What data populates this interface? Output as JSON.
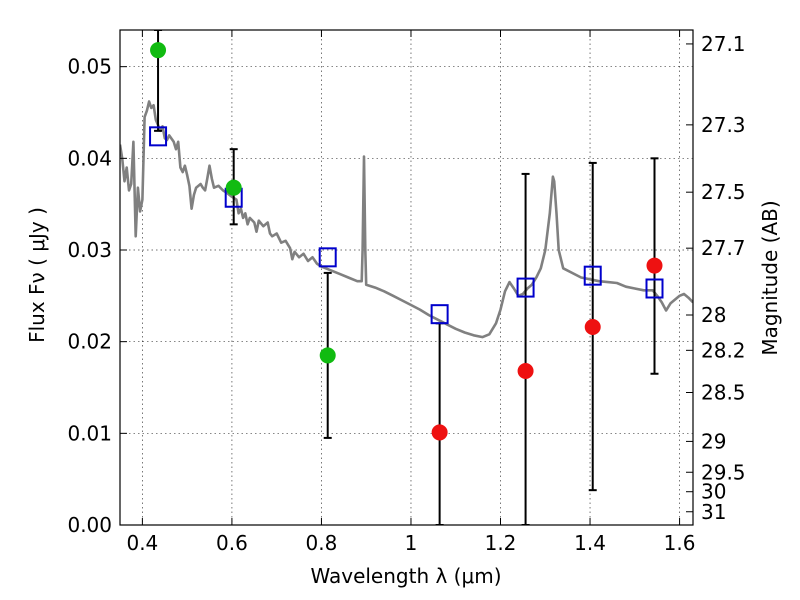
{
  "chart_data": {
    "type": "scatter",
    "xlabel": "Wavelength  λ (μm)",
    "ylabel": "Flux  Fν  ( μJy )",
    "ylabel_right": "Magnitude (AB)",
    "xlim": [
      0.35,
      1.63
    ],
    "ylim": [
      0.0,
      0.054
    ],
    "grid": true,
    "x_ticks": [
      0.4,
      0.6,
      0.8,
      1.0,
      1.2,
      1.4,
      1.6
    ],
    "x_tick_labels": [
      "0.4",
      "0.6",
      "0.8",
      "1",
      "1.2",
      "1.4",
      "1.6"
    ],
    "y_ticks": [
      0.0,
      0.01,
      0.02,
      0.03,
      0.04,
      0.05
    ],
    "y_tick_labels": [
      "0.00",
      "0.01",
      "0.02",
      "0.03",
      "0.04",
      "0.05"
    ],
    "right_ticks": [
      {
        "mag": 27.1,
        "label": "27.1"
      },
      {
        "mag": 27.3,
        "label": "27.3"
      },
      {
        "mag": 27.5,
        "label": "27.5"
      },
      {
        "mag": 27.7,
        "label": "27.7"
      },
      {
        "mag": 28.0,
        "label": "28"
      },
      {
        "mag": 28.2,
        "label": "28.2"
      },
      {
        "mag": 28.5,
        "label": "28.5"
      },
      {
        "mag": 29.0,
        "label": "29"
      },
      {
        "mag": 29.5,
        "label": "29.5"
      },
      {
        "mag": 30.0,
        "label": "30"
      },
      {
        "mag": 31.0,
        "label": "31"
      }
    ],
    "series": [
      {
        "kind": "model-spectrum",
        "color": "#808080",
        "points": [
          [
            0.35,
            0.0415
          ],
          [
            0.355,
            0.04
          ],
          [
            0.36,
            0.0375
          ],
          [
            0.365,
            0.039
          ],
          [
            0.37,
            0.0365
          ],
          [
            0.375,
            0.0372
          ],
          [
            0.38,
            0.0418
          ],
          [
            0.385,
            0.0315
          ],
          [
            0.39,
            0.0368
          ],
          [
            0.395,
            0.0342
          ],
          [
            0.4,
            0.0355
          ],
          [
            0.405,
            0.0445
          ],
          [
            0.41,
            0.0452
          ],
          [
            0.415,
            0.0462
          ],
          [
            0.42,
            0.0455
          ],
          [
            0.425,
            0.0458
          ],
          [
            0.43,
            0.0442
          ],
          [
            0.435,
            0.0436
          ],
          [
            0.44,
            0.043
          ],
          [
            0.445,
            0.0435
          ],
          [
            0.45,
            0.0422
          ],
          [
            0.455,
            0.042
          ],
          [
            0.46,
            0.0425
          ],
          [
            0.47,
            0.0418
          ],
          [
            0.475,
            0.041
          ],
          [
            0.48,
            0.0418
          ],
          [
            0.485,
            0.039
          ],
          [
            0.49,
            0.0385
          ],
          [
            0.495,
            0.0392
          ],
          [
            0.5,
            0.0382
          ],
          [
            0.505,
            0.037
          ],
          [
            0.51,
            0.0345
          ],
          [
            0.515,
            0.036
          ],
          [
            0.52,
            0.0368
          ],
          [
            0.53,
            0.0372
          ],
          [
            0.535,
            0.0368
          ],
          [
            0.54,
            0.0365
          ],
          [
            0.545,
            0.0378
          ],
          [
            0.55,
            0.0392
          ],
          [
            0.555,
            0.0378
          ],
          [
            0.56,
            0.0368
          ],
          [
            0.57,
            0.037
          ],
          [
            0.58,
            0.0365
          ],
          [
            0.59,
            0.0362
          ],
          [
            0.6,
            0.0358
          ],
          [
            0.61,
            0.0355
          ],
          [
            0.615,
            0.034
          ],
          [
            0.62,
            0.0345
          ],
          [
            0.625,
            0.0335
          ],
          [
            0.63,
            0.034
          ],
          [
            0.635,
            0.0328
          ],
          [
            0.64,
            0.0335
          ],
          [
            0.65,
            0.033
          ],
          [
            0.655,
            0.032
          ],
          [
            0.66,
            0.0332
          ],
          [
            0.67,
            0.0326
          ],
          [
            0.68,
            0.033
          ],
          [
            0.685,
            0.0318
          ],
          [
            0.69,
            0.0315
          ],
          [
            0.7,
            0.0318
          ],
          [
            0.71,
            0.0308
          ],
          [
            0.72,
            0.031
          ],
          [
            0.73,
            0.0302
          ],
          [
            0.735,
            0.029
          ],
          [
            0.74,
            0.0298
          ],
          [
            0.75,
            0.0292
          ],
          [
            0.76,
            0.0296
          ],
          [
            0.77,
            0.0288
          ],
          [
            0.78,
            0.0292
          ],
          [
            0.79,
            0.0285
          ],
          [
            0.8,
            0.0282
          ],
          [
            0.82,
            0.0278
          ],
          [
            0.84,
            0.0274
          ],
          [
            0.86,
            0.027
          ],
          [
            0.88,
            0.0266
          ],
          [
            0.89,
            0.0266
          ],
          [
            0.892,
            0.03
          ],
          [
            0.895,
            0.0402
          ],
          [
            0.898,
            0.03
          ],
          [
            0.9,
            0.0262
          ],
          [
            0.92,
            0.0259
          ],
          [
            0.94,
            0.0255
          ],
          [
            0.96,
            0.025
          ],
          [
            0.98,
            0.0245
          ],
          [
            1.0,
            0.024
          ],
          [
            1.02,
            0.0235
          ],
          [
            1.04,
            0.0229
          ],
          [
            1.06,
            0.0224
          ],
          [
            1.08,
            0.0219
          ],
          [
            1.1,
            0.0214
          ],
          [
            1.12,
            0.021
          ],
          [
            1.14,
            0.0207
          ],
          [
            1.16,
            0.0205
          ],
          [
            1.175,
            0.0208
          ],
          [
            1.19,
            0.022
          ],
          [
            1.2,
            0.0235
          ],
          [
            1.21,
            0.0255
          ],
          [
            1.22,
            0.0265
          ],
          [
            1.23,
            0.0258
          ],
          [
            1.24,
            0.025
          ],
          [
            1.25,
            0.0252
          ],
          [
            1.26,
            0.0258
          ],
          [
            1.27,
            0.0262
          ],
          [
            1.28,
            0.027
          ],
          [
            1.29,
            0.028
          ],
          [
            1.3,
            0.03
          ],
          [
            1.31,
            0.034
          ],
          [
            1.317,
            0.038
          ],
          [
            1.32,
            0.0375
          ],
          [
            1.325,
            0.034
          ],
          [
            1.33,
            0.03
          ],
          [
            1.34,
            0.028
          ],
          [
            1.36,
            0.0275
          ],
          [
            1.38,
            0.027
          ],
          [
            1.4,
            0.0268
          ],
          [
            1.42,
            0.0266
          ],
          [
            1.44,
            0.0265
          ],
          [
            1.46,
            0.0264
          ],
          [
            1.48,
            0.026
          ],
          [
            1.5,
            0.0258
          ],
          [
            1.52,
            0.0256
          ],
          [
            1.54,
            0.0256
          ],
          [
            1.55,
            0.025
          ],
          [
            1.56,
            0.0243
          ],
          [
            1.57,
            0.0234
          ],
          [
            1.58,
            0.0242
          ],
          [
            1.6,
            0.025
          ],
          [
            1.61,
            0.0252
          ],
          [
            1.62,
            0.0248
          ],
          [
            1.63,
            0.0243
          ]
        ]
      },
      {
        "kind": "model-photometry",
        "marker": "open-square",
        "color": "#0000cc",
        "x": [
          0.435,
          0.604,
          0.814,
          1.064,
          1.256,
          1.406,
          1.544
        ],
        "y": [
          0.0424,
          0.0357,
          0.0292,
          0.023,
          0.0259,
          0.0272,
          0.0258
        ]
      },
      {
        "kind": "observed-detections",
        "marker": "filled-circle",
        "color": "#11bb11",
        "x": [
          0.435,
          0.604,
          0.814
        ],
        "y": [
          0.0518,
          0.0368,
          0.0185
        ],
        "err_low": [
          0.043,
          0.0328,
          0.0095
        ],
        "err_high": [
          0.054,
          0.041,
          0.0275
        ]
      },
      {
        "kind": "observed-upper",
        "marker": "filled-circle",
        "color": "#ee1111",
        "x": [
          1.064,
          1.256,
          1.406,
          1.544
        ],
        "y": [
          0.0101,
          0.0168,
          0.0216,
          0.0283
        ],
        "err_low": [
          0.0,
          0.0,
          0.0038,
          0.0165
        ],
        "err_high": [
          0.022,
          0.0383,
          0.0395,
          0.04
        ]
      }
    ]
  }
}
